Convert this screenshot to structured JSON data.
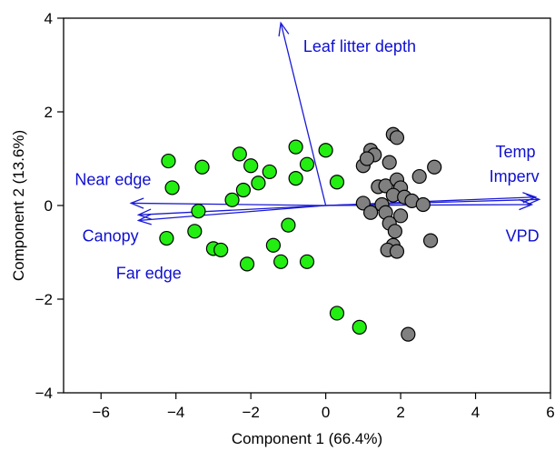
{
  "chart_data": {
    "type": "scatter",
    "title": "",
    "xlabel": "Component 1 (66.4%)",
    "ylabel": "Component 2 (13.6%)",
    "xlim": [
      -7,
      6
    ],
    "ylim": [
      -4,
      4
    ],
    "xticks": [
      -6,
      -4,
      -2,
      0,
      2,
      4,
      6
    ],
    "yticks": [
      -4,
      -2,
      0,
      2,
      4
    ],
    "grid": false,
    "colors": {
      "group_a": "#22ee11",
      "group_b": "#808080",
      "vectors": "#1a1ad6"
    },
    "series": [
      {
        "color_key": "group_a",
        "points": [
          [
            -4.2,
            0.95
          ],
          [
            -4.1,
            0.38
          ],
          [
            -3.3,
            0.82
          ],
          [
            -4.25,
            -0.7
          ],
          [
            -3.5,
            -0.55
          ],
          [
            -3.4,
            -0.12
          ],
          [
            -3.0,
            -0.92
          ],
          [
            -2.8,
            -0.95
          ],
          [
            -2.5,
            0.12
          ],
          [
            -2.3,
            1.1
          ],
          [
            -2.2,
            0.33
          ],
          [
            -2.0,
            0.85
          ],
          [
            -1.8,
            0.48
          ],
          [
            -1.5,
            0.72
          ],
          [
            -2.1,
            -1.25
          ],
          [
            -1.4,
            -0.85
          ],
          [
            -1.2,
            -1.2
          ],
          [
            -1.0,
            -0.42
          ],
          [
            -0.8,
            1.25
          ],
          [
            -0.8,
            0.58
          ],
          [
            -0.5,
            0.88
          ],
          [
            0.0,
            1.18
          ],
          [
            0.3,
            0.5
          ],
          [
            -0.5,
            -1.2
          ],
          [
            0.3,
            -2.3
          ],
          [
            0.9,
            -2.6
          ]
        ]
      },
      {
        "color_key": "group_b",
        "points": [
          [
            1.8,
            1.52
          ],
          [
            1.9,
            1.45
          ],
          [
            1.2,
            1.18
          ],
          [
            1.3,
            1.08
          ],
          [
            1.0,
            0.85
          ],
          [
            1.1,
            1.0
          ],
          [
            1.7,
            0.92
          ],
          [
            2.5,
            0.62
          ],
          [
            2.9,
            0.82
          ],
          [
            1.4,
            0.4
          ],
          [
            1.6,
            0.42
          ],
          [
            1.9,
            0.55
          ],
          [
            2.0,
            0.38
          ],
          [
            1.8,
            0.22
          ],
          [
            2.1,
            0.18
          ],
          [
            2.3,
            0.1
          ],
          [
            1.0,
            0.05
          ],
          [
            1.5,
            0.02
          ],
          [
            2.6,
            0.02
          ],
          [
            1.2,
            -0.15
          ],
          [
            1.6,
            -0.15
          ],
          [
            2.0,
            -0.22
          ],
          [
            1.7,
            -0.38
          ],
          [
            1.85,
            -0.55
          ],
          [
            1.8,
            -0.85
          ],
          [
            1.65,
            -0.95
          ],
          [
            1.9,
            -0.98
          ],
          [
            2.8,
            -0.75
          ],
          [
            2.2,
            -2.75
          ]
        ]
      }
    ],
    "vectors": [
      {
        "label": "Leaf litter depth",
        "end": [
          -1.2,
          3.9
        ],
        "label_at": [
          -0.6,
          3.4
        ],
        "anchor": "start"
      },
      {
        "label": "Near edge",
        "end": [
          -5.2,
          0.05
        ],
        "label_at": [
          -6.7,
          0.55
        ],
        "anchor": "start"
      },
      {
        "label": "Canopy",
        "end": [
          -5.0,
          -0.2
        ],
        "label_at": [
          -6.5,
          -0.65
        ],
        "anchor": "start"
      },
      {
        "label": "Far edge",
        "end": [
          -5.0,
          -0.32
        ],
        "label_at": [
          -5.6,
          -1.45
        ],
        "anchor": "start"
      },
      {
        "label": "Temp",
        "end": [
          5.6,
          0.18
        ],
        "label_at": [
          5.6,
          1.15
        ],
        "anchor": "end"
      },
      {
        "label": "Imperv",
        "end": [
          5.7,
          0.13
        ],
        "label_at": [
          5.7,
          0.62
        ],
        "anchor": "end"
      },
      {
        "label": "VPD",
        "end": [
          5.5,
          0.02
        ],
        "label_at": [
          5.7,
          -0.65
        ],
        "anchor": "end"
      }
    ]
  }
}
